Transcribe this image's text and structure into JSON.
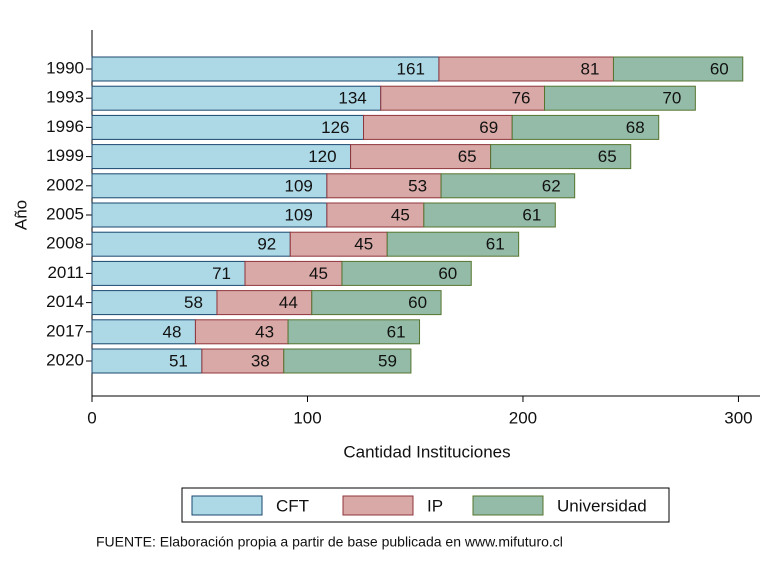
{
  "chart_data": {
    "type": "stacked_barh",
    "categories": [
      "1990",
      "1993",
      "1996",
      "1999",
      "2002",
      "2005",
      "2008",
      "2011",
      "2014",
      "2017",
      "2020"
    ],
    "series": [
      {
        "name": "CFT",
        "color": "#add8e6",
        "edge": "#1a476f",
        "values": [
          161,
          134,
          126,
          120,
          109,
          109,
          92,
          71,
          58,
          48,
          51
        ]
      },
      {
        "name": "IP",
        "color": "#d8a9a6",
        "edge": "#90353b",
        "values": [
          81,
          76,
          69,
          65,
          53,
          45,
          45,
          45,
          44,
          43,
          38
        ]
      },
      {
        "name": "Universidad",
        "color": "#93bba8",
        "edge": "#55752f",
        "values": [
          60,
          70,
          68,
          65,
          62,
          61,
          61,
          60,
          60,
          61,
          59
        ]
      }
    ],
    "xlabel": "Cantidad Instituciones",
    "ylabel": "Año",
    "xlim": [
      0,
      310
    ],
    "xticks": [
      0,
      100,
      200,
      300
    ],
    "legend": "bottom",
    "source": "FUENTE: Elaboración propia a partir de base publicada en www.mifuturo.cl"
  }
}
